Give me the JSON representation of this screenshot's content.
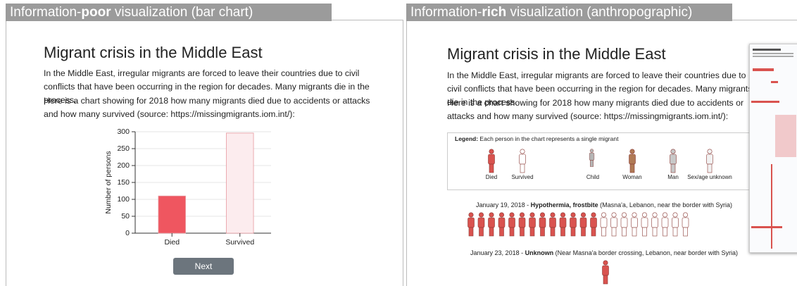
{
  "left_panel": {
    "header": {
      "prefix": "Information-",
      "bold": "poor",
      "suffix": " visualization (bar chart)"
    },
    "title": "Migrant crisis in the Middle East",
    "paragraphs": [
      "In the Middle East, irregular migrants are forced to leave their countries due to civil conflicts that have been occurring in the region for decades. Many migrants die in the process.",
      "Here is a chart showing for 2018 how many migrants died due to accidents or attacks and how many survived (source: https://missingmigrants.iom.int/):"
    ],
    "button": "Next"
  },
  "chart_data": {
    "type": "bar",
    "categories": [
      "Died",
      "Survived"
    ],
    "values": [
      110,
      296
    ],
    "colors": [
      "#ef5660",
      "#fcecee"
    ],
    "y_label": "Number of persons",
    "ylim": [
      0,
      300
    ],
    "yticks": [
      0,
      50,
      100,
      150,
      200,
      250,
      300
    ],
    "grid": true
  },
  "right_panel": {
    "header": {
      "prefix": "Information-",
      "bold": "rich",
      "suffix": " visualization (anthropographic)"
    },
    "title": "Migrant crisis in the Middle East",
    "paragraphs": [
      "In the Middle East, irregular migrants are forced to leave their countries due to civil conflicts that have been occurring in the region for decades. Many migrants die in the process.",
      "Here is a chart showing for 2018 how many migrants died due to accidents or attacks and how many survived (source: https://missingmigrants.iom.int/):"
    ],
    "legend": {
      "label": "Legend:",
      "text": " Each person in the chart represents a single migrant",
      "items": [
        {
          "name": "Died",
          "color": "#d9534f"
        },
        {
          "name": "Survived",
          "color": "#ffffff"
        },
        {
          "name": "Child",
          "color": "#b5b5b5"
        },
        {
          "name": "Woman",
          "color": "#b07a55"
        },
        {
          "name": "Man",
          "color": "#c8c8c8"
        },
        {
          "name": "Sex/age unknown",
          "color": "#f2f2f2"
        }
      ]
    },
    "events": [
      {
        "date": "January 19, 2018 - ",
        "cause": "Hypothermia, frostbite",
        "place": " (Masna'a, Lebanon, near the border with Syria)"
      },
      {
        "date": "January 23, 2018 - ",
        "cause": "Unknown",
        "place": " (Near Masna'a border crossing, Lebanon, near border with Syria)"
      }
    ]
  }
}
